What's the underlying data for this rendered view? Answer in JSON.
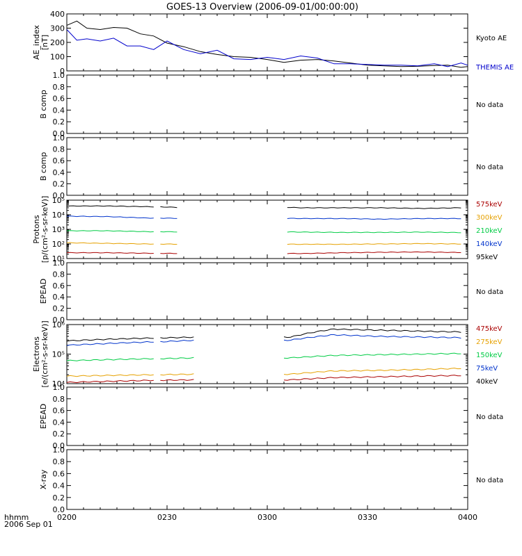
{
  "title": "GOES-13 Overview (2006-09-01/00:00:00)",
  "x_axis": {
    "tick_labels": [
      "0200",
      "0230",
      "0300",
      "0330",
      "0400"
    ],
    "corner_label_1": "hhmm",
    "corner_label_2": "2006 Sep 01"
  },
  "chart_data": [
    {
      "type": "line",
      "ylabel": "AE_index\n[nT]",
      "ylim": [
        0,
        400
      ],
      "yticks": [
        "0",
        "100",
        "200",
        "300",
        "400"
      ],
      "x": [
        "02:00",
        "02:03",
        "02:06",
        "02:10",
        "02:14",
        "02:18",
        "02:22",
        "02:26",
        "02:30",
        "02:35",
        "02:40",
        "02:45",
        "02:50",
        "02:55",
        "03:00",
        "03:05",
        "03:10",
        "03:15",
        "03:20",
        "03:25",
        "03:30",
        "03:35",
        "03:40",
        "03:45",
        "03:50",
        "03:54",
        "03:58",
        "04:00"
      ],
      "series": [
        {
          "name": "Kyoto AE",
          "color": "#000000",
          "values": [
            320,
            350,
            300,
            290,
            305,
            300,
            260,
            245,
            195,
            170,
            135,
            115,
            100,
            95,
            80,
            60,
            75,
            80,
            70,
            55,
            40,
            35,
            30,
            32,
            38,
            40,
            25,
            30
          ]
        },
        {
          "name": "THEMIS AE",
          "color": "#0000cc",
          "values": [
            290,
            215,
            225,
            210,
            230,
            175,
            175,
            150,
            210,
            150,
            120,
            145,
            85,
            80,
            95,
            80,
            105,
            90,
            50,
            50,
            45,
            40,
            40,
            35,
            50,
            30,
            55,
            40
          ]
        }
      ]
    },
    {
      "type": "line",
      "ylabel": "B comp",
      "ylim": [
        0,
        1
      ],
      "yticks": [
        "0.0",
        "0.2",
        "0.4",
        "0.6",
        "0.8",
        "1.0"
      ],
      "status": "No data",
      "series": []
    },
    {
      "type": "line",
      "ylabel": "B comp",
      "ylim": [
        0,
        1
      ],
      "yticks": [
        "0.0",
        "0.2",
        "0.4",
        "0.6",
        "0.8",
        "1.0"
      ],
      "status": "No data",
      "series": []
    },
    {
      "type": "line",
      "ylabel": "Protons\n[p/(cm²-s-sr-keV)]",
      "scale": "log",
      "ylim": [
        10,
        100000
      ],
      "yticks": [
        "10¹",
        "10²",
        "10³",
        "10⁴",
        "10⁵"
      ],
      "segments": [
        [
          "02:00",
          "02:26"
        ],
        [
          "02:28",
          "02:33"
        ],
        [
          "03:06",
          "03:58"
        ]
      ],
      "series": [
        {
          "name": "95keV",
          "color": "#000000",
          "values": [
            40000,
            40000,
            36000,
            30000,
            30000,
            30000,
            27000,
            30000
          ]
        },
        {
          "name": "140keV",
          "color": "#0033cc",
          "values": [
            8000,
            7500,
            6000,
            5500,
            5500,
            5000,
            5500,
            5500
          ]
        },
        {
          "name": "210keV",
          "color": "#00cc44",
          "values": [
            800,
            800,
            700,
            650,
            620,
            620,
            650,
            600
          ]
        },
        {
          "name": "300keV",
          "color": "#e6a100",
          "values": [
            120,
            110,
            100,
            95,
            95,
            100,
            105,
            100
          ]
        },
        {
          "name": "575keV",
          "color": "#aa0000",
          "values": [
            25,
            25,
            23,
            22,
            25,
            27,
            28,
            26
          ]
        }
      ],
      "legend": [
        "575keV",
        "300keV",
        "210keV",
        "140keV",
        "95keV"
      ]
    },
    {
      "type": "line",
      "ylabel": "EPEAD",
      "ylim": [
        0,
        1
      ],
      "yticks": [
        "0.0",
        "0.2",
        "0.4",
        "0.6",
        "0.8",
        "1.0"
      ],
      "status": "No data",
      "series": []
    },
    {
      "type": "line",
      "ylabel": "Electrons\n[e/(cm²-s-sr-keV)]",
      "scale": "log",
      "ylim": [
        10000,
        1000000
      ],
      "yticks": [
        "10⁴",
        "10⁵",
        "10⁶"
      ],
      "segments": [
        [
          "02:00",
          "02:26"
        ],
        [
          "02:28",
          "02:38"
        ],
        [
          "03:05",
          "03:58"
        ]
      ],
      "series": [
        {
          "name": "40keV",
          "color": "#000000",
          "values": [
            280000,
            320000,
            350000,
            380000,
            700000,
            650000,
            600000,
            560000
          ]
        },
        {
          "name": "75keV",
          "color": "#0033cc",
          "values": [
            200000,
            230000,
            260000,
            300000,
            450000,
            400000,
            380000,
            360000
          ]
        },
        {
          "name": "150keV",
          "color": "#00cc44",
          "values": [
            60000,
            65000,
            70000,
            75000,
            90000,
            95000,
            100000,
            105000
          ]
        },
        {
          "name": "275keV",
          "color": "#e6a100",
          "values": [
            18000,
            19000,
            20000,
            21000,
            27000,
            28000,
            30000,
            33000
          ]
        },
        {
          "name": "475keV",
          "color": "#aa0000",
          "values": [
            11000,
            12000,
            13000,
            13500,
            16000,
            17000,
            18000,
            19000
          ]
        }
      ],
      "legend": [
        "475keV",
        "275keV",
        "150keV",
        "75keV",
        "40keV"
      ]
    },
    {
      "type": "line",
      "ylabel": "EPEAD",
      "ylim": [
        0,
        1
      ],
      "yticks": [
        "0.0",
        "0.2",
        "0.4",
        "0.6",
        "0.8",
        "1.0"
      ],
      "status": "No data",
      "series": []
    },
    {
      "type": "line",
      "ylabel": "X-ray",
      "ylim": [
        0,
        1
      ],
      "yticks": [
        "0.0",
        "0.2",
        "0.4",
        "0.6",
        "0.8",
        "1.0"
      ],
      "status": "No data",
      "series": []
    }
  ]
}
